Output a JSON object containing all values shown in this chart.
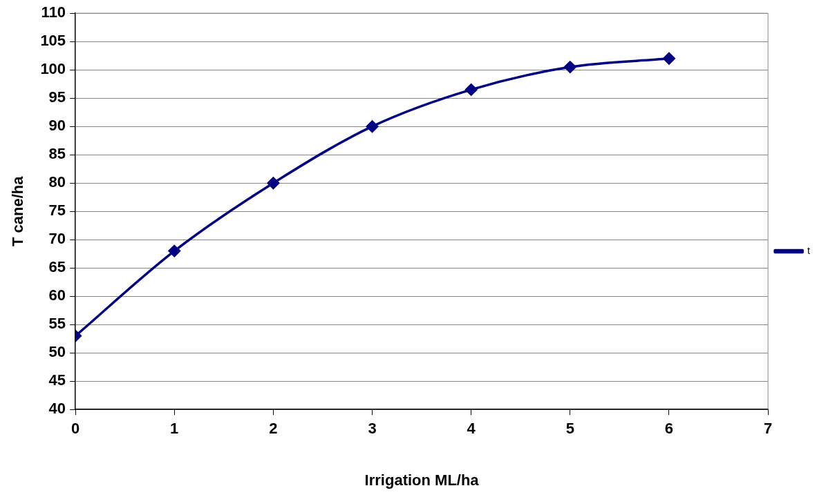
{
  "chart_data": {
    "type": "line",
    "xlabel": "Irrigation ML/ha",
    "ylabel": "T cane/ha",
    "x": [
      0,
      1,
      2,
      3,
      4,
      5,
      6
    ],
    "series": [
      {
        "name": "t",
        "color": "#000080",
        "values": [
          53,
          68,
          80,
          90,
          96.5,
          100.5,
          102
        ]
      }
    ],
    "xlim": [
      0,
      7
    ],
    "xticks": [
      0,
      1,
      2,
      3,
      4,
      5,
      6,
      7
    ],
    "ylim": [
      40,
      110
    ],
    "yticks": [
      40,
      45,
      50,
      55,
      60,
      65,
      70,
      75,
      80,
      85,
      90,
      95,
      100,
      105,
      110
    ],
    "grid": "y",
    "legend": "right",
    "marker": "diamond",
    "line_style": "solid"
  }
}
